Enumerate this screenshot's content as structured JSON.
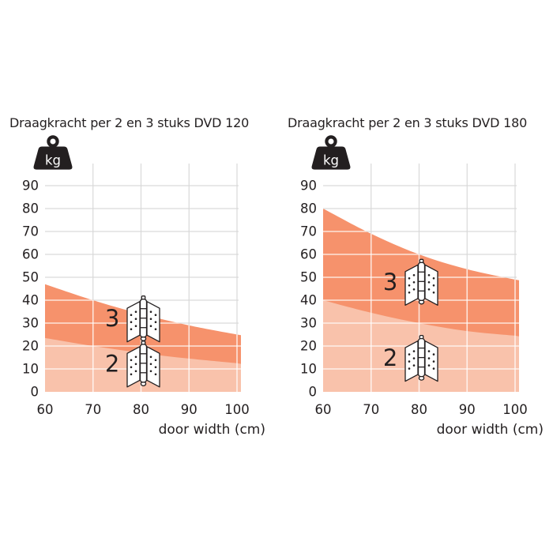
{
  "page": {
    "background": "#ffffff",
    "description": "Two load-capacity area charts for door hinges"
  },
  "colors": {
    "ink": "#231f20",
    "grid": "#d9d9d9",
    "grid_on_fill": "rgba(255,255,255,0.75)",
    "area_3_hinges": "#f6926c",
    "area_2_hinges": "#f9c2ab",
    "icon_text": "#ffffff"
  },
  "unit_badge": {
    "icon": "kg-weight-icon",
    "text": "kg"
  },
  "chart_data": [
    {
      "type": "area",
      "title": "Draagkracht per 2 en 3 stuks DVD 120",
      "xlabel": "door width (cm)",
      "y_unit": "kg",
      "x": [
        60,
        70,
        80,
        90,
        100
      ],
      "x_ticks": [
        60,
        70,
        80,
        90,
        100
      ],
      "y_ticks": [
        0,
        10,
        20,
        30,
        40,
        50,
        60,
        70,
        80,
        90
      ],
      "xlim": [
        60,
        100
      ],
      "ylim": [
        0,
        97
      ],
      "grid": true,
      "legend_position": "in-plot-labels",
      "series": [
        {
          "name": "draagkracht met 3 scharnieren",
          "label": "3",
          "values": [
            47,
            40,
            34,
            29,
            25
          ]
        },
        {
          "name": "draagkracht met 2 scharnieren",
          "label": "2",
          "values": [
            23.5,
            20,
            17,
            14.5,
            12.5
          ]
        }
      ],
      "annotations": [
        {
          "label": "3",
          "icon": "hinge-icon",
          "at_cm": 80.5,
          "at_kg": 32
        },
        {
          "label": "2",
          "icon": "hinge-icon",
          "at_cm": 80.5,
          "at_kg": 12.3
        }
      ]
    },
    {
      "type": "area",
      "title": "Draagkracht per 2 en 3 stuks DVD 180",
      "xlabel": "door width (cm)",
      "y_unit": "kg",
      "x": [
        60,
        70,
        80,
        90,
        100
      ],
      "x_ticks": [
        60,
        70,
        80,
        90,
        100
      ],
      "y_ticks": [
        0,
        10,
        20,
        30,
        40,
        50,
        60,
        70,
        80,
        90
      ],
      "xlim": [
        60,
        100
      ],
      "ylim": [
        0,
        97
      ],
      "grid": true,
      "legend_position": "in-plot-labels",
      "series": [
        {
          "name": "draagkracht met 3 scharnieren",
          "label": "3",
          "values": [
            80,
            69,
            60,
            53.5,
            49
          ]
        },
        {
          "name": "draagkracht met 2 scharnieren",
          "label": "2",
          "values": [
            40,
            34.5,
            30,
            26.5,
            24.5
          ]
        }
      ],
      "annotations": [
        {
          "label": "3",
          "icon": "hinge-icon",
          "at_cm": 80.5,
          "at_kg": 48
        },
        {
          "label": "2",
          "icon": "hinge-icon",
          "at_cm": 80.5,
          "at_kg": 14.8
        }
      ]
    }
  ]
}
